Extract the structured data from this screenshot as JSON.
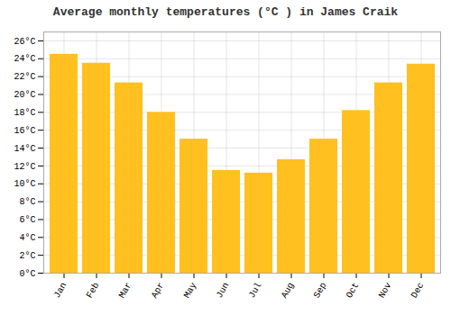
{
  "chart_data": {
    "type": "bar",
    "title": "Average monthly temperatures (°C ) in James Craik",
    "categories": [
      "Jan",
      "Feb",
      "Mar",
      "Apr",
      "May",
      "Jun",
      "Jul",
      "Aug",
      "Sep",
      "Oct",
      "Nov",
      "Dec"
    ],
    "values": [
      24.5,
      23.5,
      21.3,
      18.0,
      15.0,
      11.5,
      11.2,
      12.7,
      15.0,
      18.2,
      21.3,
      23.4
    ],
    "color": "#FFC020",
    "ylim": [
      0,
      27
    ],
    "yticks": [
      {
        "value": 0,
        "label": "0°C"
      },
      {
        "value": 2,
        "label": "2°C"
      },
      {
        "value": 4,
        "label": "4°C"
      },
      {
        "value": 6,
        "label": "6°C"
      },
      {
        "value": 8,
        "label": "8°C"
      },
      {
        "value": 10,
        "label": "10°C"
      },
      {
        "value": 12,
        "label": "12°C"
      },
      {
        "value": 14,
        "label": "14°C"
      },
      {
        "value": 16,
        "label": "16°C"
      },
      {
        "value": 18,
        "label": "18°C"
      },
      {
        "value": 20,
        "label": "20°C"
      },
      {
        "value": 22,
        "label": "22°C"
      },
      {
        "value": 24,
        "label": "24°C"
      },
      {
        "value": 26,
        "label": "26°C"
      }
    ],
    "grid": true
  }
}
